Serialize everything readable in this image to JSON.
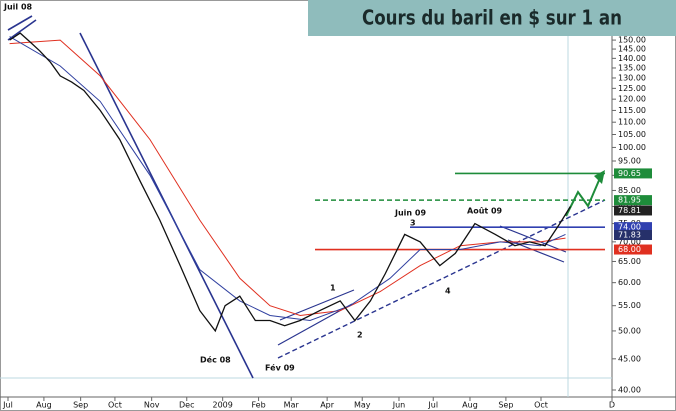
{
  "chart_data": {
    "type": "line",
    "title": "Cours du baril en $ sur 1 an",
    "log_scale": true,
    "xlim": [
      0,
      74
    ],
    "ylim": [
      40,
      160
    ],
    "xticks": [
      {
        "value": 0,
        "label": "Jul"
      },
      {
        "value": 4.4,
        "label": "Aug"
      },
      {
        "value": 8.9,
        "label": "Sep"
      },
      {
        "value": 13.1,
        "label": "Oct"
      },
      {
        "value": 17.6,
        "label": "Nov"
      },
      {
        "value": 21.9,
        "label": "Dec"
      },
      {
        "value": 26.3,
        "label": "2009"
      },
      {
        "value": 30.7,
        "label": "Feb"
      },
      {
        "value": 34.7,
        "label": "Mar"
      },
      {
        "value": 39.1,
        "label": "Apr"
      },
      {
        "value": 43.4,
        "label": "May"
      },
      {
        "value": 47.9,
        "label": "Jun"
      },
      {
        "value": 52.1,
        "label": "Jul"
      },
      {
        "value": 56.6,
        "label": "Aug"
      },
      {
        "value": 61,
        "label": "Sep"
      },
      {
        "value": 65.3,
        "label": "Oct"
      },
      {
        "value": 74,
        "label": "D"
      }
    ],
    "yticks": [
      {
        "value": 40,
        "label": "40.00"
      },
      {
        "value": 45,
        "label": "45.00"
      },
      {
        "value": 50,
        "label": "50.00"
      },
      {
        "value": 55,
        "label": "55.00"
      },
      {
        "value": 60,
        "label": "60.00"
      },
      {
        "value": 65,
        "label": "65.00"
      },
      {
        "value": 70,
        "label": "70.00"
      },
      {
        "value": 75,
        "label": "75.00"
      },
      {
        "value": 80,
        "label": "80.00"
      },
      {
        "value": 85,
        "label": "85.00"
      },
      {
        "value": 90,
        "label": "90.00"
      },
      {
        "value": 95,
        "label": "95.00"
      },
      {
        "value": 100,
        "label": "100.00"
      },
      {
        "value": 105,
        "label": "105.00"
      },
      {
        "value": 110,
        "label": "110.00"
      },
      {
        "value": 115,
        "label": "115.00"
      },
      {
        "value": 120,
        "label": "120.00"
      },
      {
        "value": 125,
        "label": "125.00"
      },
      {
        "value": 130,
        "label": "130.00"
      },
      {
        "value": 135,
        "label": "135.00"
      },
      {
        "value": 140,
        "label": "140.00"
      },
      {
        "value": 145,
        "label": "145.00"
      },
      {
        "value": 150,
        "label": "150.00"
      }
    ],
    "series": [
      {
        "color": "#111111",
        "x": [
          0.2,
          1.5,
          2.7,
          3.9,
          5.2,
          6.4,
          7.8,
          9.3,
          11.3,
          13.7,
          16.2,
          18.6,
          21.1,
          23.5,
          25.4,
          26.6,
          28.4,
          30.3,
          32.1,
          33.9,
          35.8,
          38.2,
          40.7,
          42.5,
          44.4,
          46.2,
          48.6,
          50.5,
          52.9,
          54.8,
          57.2,
          59.7,
          62.1,
          63.9,
          65.8,
          67.6,
          68.9
        ],
        "values": [
          150,
          154,
          149,
          144,
          138,
          131,
          128,
          124,
          115,
          103,
          88,
          76,
          64,
          54,
          50,
          55,
          57,
          52,
          52,
          51,
          52,
          54,
          56,
          52,
          56,
          62,
          72,
          70,
          64,
          67,
          75,
          72,
          69,
          70,
          69,
          75,
          80
        ]
      },
      {
        "color": "#e03020",
        "x": [
          0.2,
          6.4,
          11.3,
          17.4,
          23.5,
          28.4,
          32.1,
          35.8,
          40.7,
          45.6,
          50.5,
          55.4,
          60.3,
          65.2,
          68.3
        ],
        "values": [
          148,
          150,
          131,
          103,
          76,
          61,
          55,
          53,
          54,
          58,
          64,
          69,
          70,
          70,
          71
        ]
      },
      {
        "color": "#3040a0",
        "x": [
          0.2,
          6.4,
          11.3,
          17.4,
          23.5,
          28.4,
          32.1,
          37,
          41.9,
          46.8,
          50.5,
          55.4,
          60.3,
          65.2,
          68.3
        ],
        "values": [
          152,
          136,
          119,
          90,
          63,
          56,
          53,
          52,
          55,
          61,
          68,
          68,
          70,
          69,
          72
        ]
      }
    ],
    "levels": [
      {
        "value": 90.65,
        "label": "90.65",
        "color": "#1e8c3a",
        "line": "solid"
      },
      {
        "value": 81.95,
        "label": "81.95",
        "color": "#1e8c3a",
        "line": "dashed"
      },
      {
        "value": 78.81,
        "label": "78.81",
        "color": "#222222",
        "line": null
      },
      {
        "value": 74.0,
        "label": "74.00",
        "color": "#3040b0",
        "line": "solid"
      },
      {
        "value": 71.83,
        "label": "71.83",
        "color": "#26306a",
        "line": null
      },
      {
        "value": 68.0,
        "label": "68.00",
        "color": "#e03020",
        "line": "solid"
      }
    ],
    "annotations": [
      "Juil 08",
      "Déc 08",
      "Fév 09",
      "Juin 09",
      "Août 09",
      "1",
      "2",
      "3",
      "4"
    ]
  }
}
